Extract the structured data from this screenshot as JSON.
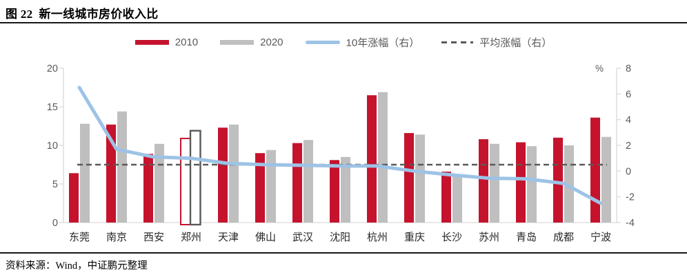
{
  "figure": {
    "title": "图 22  新一线城市房价收入比",
    "source": "资料来源：Wind，中证鹏元整理"
  },
  "legend": [
    {
      "label": "2010",
      "type": "bar",
      "color": "#C5132D"
    },
    {
      "label": "2020",
      "type": "bar",
      "color": "#BFBFBF"
    },
    {
      "label": "10年涨幅（右）",
      "type": "line",
      "color": "#9DC3E6"
    },
    {
      "label": "平均涨幅（右）",
      "type": "dashed-line",
      "color": "#595959"
    }
  ],
  "chart_data": {
    "type": "bar",
    "title": "新一线城市房价收入比",
    "categories": [
      "东莞",
      "南京",
      "西安",
      "郑州",
      "天津",
      "佛山",
      "武汉",
      "沈阳",
      "杭州",
      "重庆",
      "长沙",
      "苏州",
      "青岛",
      "成都",
      "宁波"
    ],
    "series": [
      {
        "name": "2010",
        "type": "bar",
        "axis": "left",
        "color": "#C5132D",
        "values": [
          6.4,
          12.7,
          8.9,
          10.9,
          12.3,
          9.0,
          10.3,
          8.1,
          16.5,
          11.6,
          6.6,
          10.8,
          10.4,
          11.0,
          13.6
        ]
      },
      {
        "name": "2020",
        "type": "bar",
        "axis": "left",
        "color": "#BFBFBF",
        "values": [
          12.8,
          14.4,
          10.2,
          11.9,
          12.7,
          9.4,
          10.7,
          8.5,
          16.9,
          11.4,
          6.0,
          10.2,
          9.9,
          10.0,
          11.1
        ]
      },
      {
        "name": "10年涨幅（右）",
        "type": "line",
        "axis": "right",
        "color": "#9DC3E6",
        "values": [
          6.5,
          1.7,
          1.1,
          1.0,
          0.6,
          0.5,
          0.45,
          0.4,
          0.4,
          0.0,
          -0.3,
          -0.55,
          -0.6,
          -0.95,
          -2.5
        ]
      },
      {
        "name": "平均涨幅（右）",
        "type": "dashed-line",
        "axis": "right",
        "color": "#595959",
        "value": 0.5
      }
    ],
    "highlight_category": "郑州",
    "left_axis": {
      "range": [
        0,
        20
      ],
      "ticks": [
        0,
        5,
        10,
        15,
        20
      ]
    },
    "right_axis": {
      "range": [
        -4,
        8
      ],
      "ticks": [
        8,
        6,
        4,
        2,
        0,
        -2,
        -4
      ],
      "unit": "%"
    },
    "grid": false,
    "legend_position": "top-center",
    "axis_color": "#D9D9D9",
    "tick_label_color": "#595959",
    "category_label_color": "#262626"
  }
}
